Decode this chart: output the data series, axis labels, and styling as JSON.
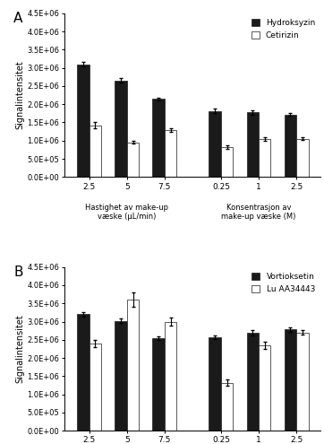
{
  "panel_A": {
    "title": "A",
    "ylabel": "Signalintensitet",
    "legend": [
      "Hydroksyzin",
      "Cetirizin"
    ],
    "group1": {
      "xlabel1": "Hastighet av make-up",
      "xlabel2": "væske (μL/min)",
      "xticks": [
        "2.5",
        "5",
        "7.5"
      ],
      "black_vals": [
        3100000.0,
        2650000.0,
        2150000.0
      ],
      "white_vals": [
        1420000.0,
        950000.0,
        1300000.0
      ],
      "black_err": [
        70000.0,
        60000.0,
        40000.0
      ],
      "white_err": [
        80000.0,
        40000.0,
        50000.0
      ]
    },
    "group2": {
      "xlabel1": "Konsentrasjon av",
      "xlabel2": "make-up væske (M)",
      "xticks": [
        "0.25",
        "1",
        "2.5"
      ],
      "black_vals": [
        1820000.0,
        1780000.0,
        1720000.0
      ],
      "white_vals": [
        820000.0,
        1050000.0,
        1050000.0
      ],
      "black_err": [
        50000.0,
        60000.0,
        40000.0
      ],
      "white_err": [
        40000.0,
        50000.0,
        40000.0
      ]
    }
  },
  "panel_B": {
    "title": "B",
    "ylabel": "Signalintensitet",
    "legend": [
      "Vortioksetin",
      "Lu AA34443"
    ],
    "group1": {
      "xlabel1": "Hastighet av make-up",
      "xlabel2": "væske (μL/min)",
      "xticks": [
        "2.5",
        "5",
        "7.5"
      ],
      "black_vals": [
        3200000.0,
        3020000.0,
        2550000.0
      ],
      "white_vals": [
        2400000.0,
        3600000.0,
        3000000.0
      ],
      "black_err": [
        60000.0,
        60000.0,
        50000.0
      ],
      "white_err": [
        100000.0,
        200000.0,
        100000.0
      ]
    },
    "group2": {
      "xlabel1": "Konsentrasjon av",
      "xlabel2": "make-up væske (M)",
      "xticks": [
        "0.25",
        "1",
        "2.5"
      ],
      "black_vals": [
        2570000.0,
        2700000.0,
        2780000.0
      ],
      "white_vals": [
        1320000.0,
        2350000.0,
        2700000.0
      ],
      "black_err": [
        60000.0,
        70000.0,
        60000.0
      ],
      "white_err": [
        80000.0,
        100000.0,
        60000.0
      ]
    }
  },
  "ylim": [
    0,
    4500000.0
  ],
  "yticks": [
    0,
    500000.0,
    1000000.0,
    1500000.0,
    2000000.0,
    2500000.0,
    3000000.0,
    3500000.0,
    4000000.0,
    4500000.0
  ],
  "ytick_labels": [
    "0.0E+00",
    "5.0E+05",
    "1.0E+06",
    "1.5E+06",
    "2.0E+06",
    "2.5E+06",
    "3.0E+06",
    "3.5E+06",
    "4.0E+06",
    "4.5E+06"
  ],
  "bar_width": 0.32,
  "black_color": "#1a1a1a",
  "white_color": "#ffffff",
  "edge_color": "#1a1a1a",
  "bg_color": "#ffffff",
  "fig_bg": "#ffffff"
}
